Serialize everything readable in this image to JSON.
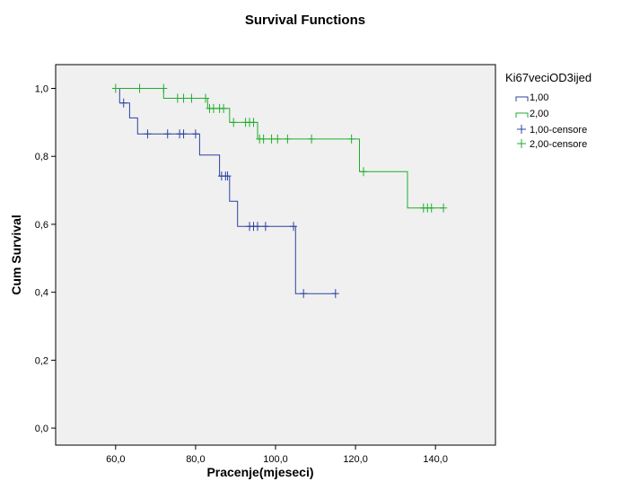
{
  "chart_data": {
    "type": "line",
    "title": "Survival Functions",
    "xlabel": "Pracenje(mjeseci)",
    "ylabel": "Cum Survival",
    "xlim": [
      45,
      155
    ],
    "ylim": [
      -0.05,
      1.07
    ],
    "x_ticks": [
      60,
      80,
      100,
      120,
      140
    ],
    "x_tick_labels": [
      "60,0",
      "80,0",
      "100,0",
      "120,0",
      "140,0"
    ],
    "y_ticks": [
      0,
      0.2,
      0.4,
      0.6,
      0.8,
      1.0
    ],
    "y_tick_labels": [
      "0,0",
      "0,2",
      "0,4",
      "0,6",
      "0,8",
      "1,0"
    ],
    "grid": false,
    "legend_position": "right",
    "legend": {
      "title": "Ki67veciOD3ijed",
      "entries": [
        "1,00",
        "2,00",
        "1,00-censore",
        "2,00-censore"
      ]
    },
    "colors": {
      "series1": "#2b43a0",
      "series2": "#1fad2b",
      "plot_bg": "#f0f0f0"
    },
    "series": [
      {
        "name": "1,00",
        "steps": [
          [
            60,
            1.0
          ],
          [
            61,
            0.957
          ],
          [
            63.5,
            0.913
          ],
          [
            65.5,
            0.866
          ],
          [
            81,
            0.804
          ],
          [
            86,
            0.742
          ],
          [
            88.5,
            0.668
          ],
          [
            90.5,
            0.594
          ],
          [
            105,
            0.396
          ],
          [
            115,
            0.396
          ]
        ],
        "censored": [
          [
            62,
            0.957
          ],
          [
            68,
            0.866
          ],
          [
            73,
            0.866
          ],
          [
            76,
            0.866
          ],
          [
            77,
            0.866
          ],
          [
            80,
            0.866
          ],
          [
            86.5,
            0.742
          ],
          [
            87.5,
            0.742
          ],
          [
            88,
            0.742
          ],
          [
            93.5,
            0.594
          ],
          [
            94.5,
            0.594
          ],
          [
            95.5,
            0.594
          ],
          [
            97.5,
            0.594
          ],
          [
            104.5,
            0.594
          ],
          [
            107,
            0.396
          ],
          [
            115,
            0.396
          ]
        ]
      },
      {
        "name": "2,00",
        "steps": [
          [
            60,
            1.0
          ],
          [
            72,
            0.971
          ],
          [
            83,
            0.941
          ],
          [
            88.5,
            0.9
          ],
          [
            95.5,
            0.851
          ],
          [
            121,
            0.755
          ],
          [
            133,
            0.648
          ],
          [
            142,
            0.648
          ]
        ],
        "censored": [
          [
            60,
            1.0
          ],
          [
            66,
            1.0
          ],
          [
            72,
            1.0
          ],
          [
            75.5,
            0.971
          ],
          [
            77,
            0.971
          ],
          [
            79,
            0.971
          ],
          [
            82.5,
            0.971
          ],
          [
            83.5,
            0.941
          ],
          [
            84.5,
            0.941
          ],
          [
            86,
            0.941
          ],
          [
            87,
            0.941
          ],
          [
            89.5,
            0.9
          ],
          [
            92.5,
            0.9
          ],
          [
            93.5,
            0.9
          ],
          [
            94.5,
            0.9
          ],
          [
            96,
            0.851
          ],
          [
            97,
            0.851
          ],
          [
            99,
            0.851
          ],
          [
            100.5,
            0.851
          ],
          [
            103,
            0.851
          ],
          [
            109,
            0.851
          ],
          [
            119,
            0.851
          ],
          [
            122,
            0.755
          ],
          [
            137,
            0.648
          ],
          [
            138,
            0.648
          ],
          [
            139,
            0.648
          ],
          [
            142,
            0.648
          ]
        ]
      }
    ]
  }
}
